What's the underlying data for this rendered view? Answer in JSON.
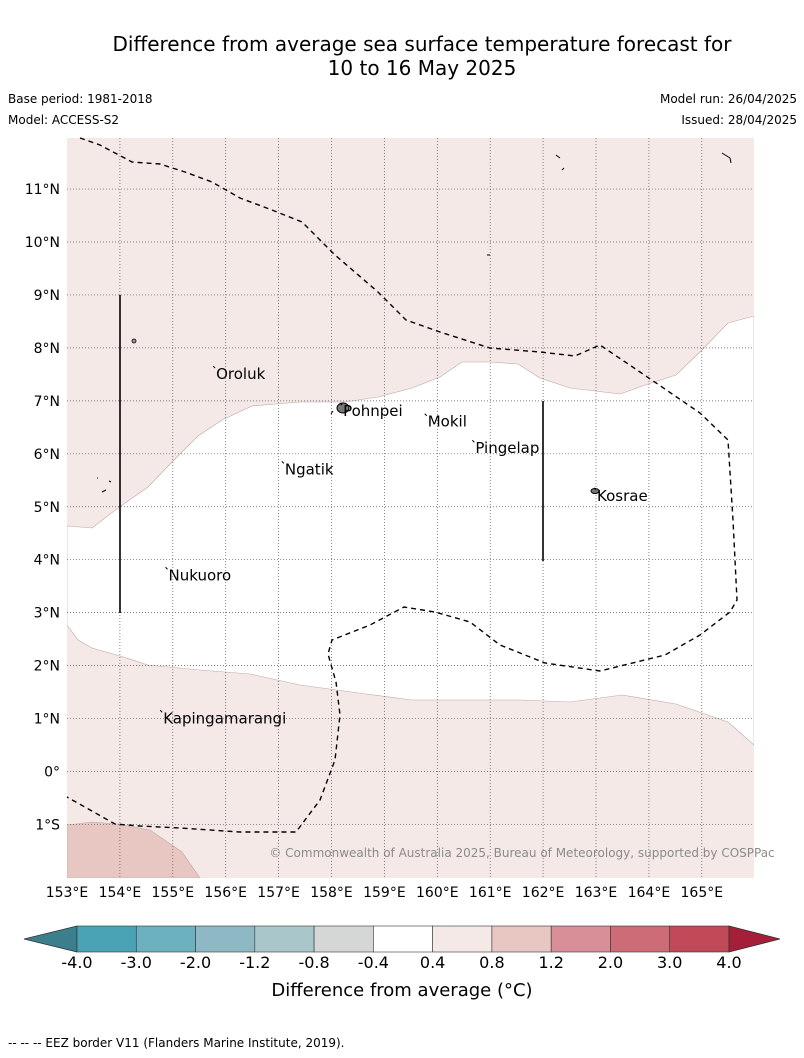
{
  "title": {
    "line1": "Difference from average sea surface temperature forecast for",
    "line2": "10 to 16 May 2025"
  },
  "meta": {
    "base_period": "Base period: 1981-2018",
    "model": "Model: ACCESS-S2",
    "model_run": "Model run: 26/04/2025",
    "issued": "Issued: 28/04/2025"
  },
  "map": {
    "lat_labels": [
      "11°N",
      "10°N",
      "9°N",
      "8°N",
      "7°N",
      "6°N",
      "5°N",
      "4°N",
      "3°N",
      "2°N",
      "1°N",
      "0°",
      "1°S"
    ],
    "lon_labels": [
      "153°E",
      "154°E",
      "155°E",
      "156°E",
      "157°E",
      "158°E",
      "159°E",
      "160°E",
      "161°E",
      "162°E",
      "163°E",
      "164°E",
      "165°E"
    ],
    "places": [
      {
        "name": "Oroluk",
        "lon": 155.8,
        "lat": 7.6
      },
      {
        "name": "Pohnpei",
        "lon": 158.2,
        "lat": 6.9
      },
      {
        "name": "Mokil",
        "lon": 159.8,
        "lat": 6.7
      },
      {
        "name": "Pingelap",
        "lon": 160.7,
        "lat": 6.2
      },
      {
        "name": "Ngatik",
        "lon": 157.1,
        "lat": 5.8
      },
      {
        "name": "Kosrae",
        "lon": 163.0,
        "lat": 5.3
      },
      {
        "name": "Nukuoro",
        "lon": 154.9,
        "lat": 3.8
      },
      {
        "name": "Kapingamarangi",
        "lon": 154.8,
        "lat": 1.1
      }
    ],
    "copyright": "© Commonwealth of Australia 2025, Bureau of Meteorology, supported by COSPPac",
    "fill_colors": {
      "light_warm": "#f5e9e8",
      "warm": "#e8c7c3",
      "neutral": "#ffffff"
    }
  },
  "colorbar": {
    "ticks": [
      "-4.0",
      "-3.0",
      "-2.0",
      "-1.2",
      "-0.8",
      "-0.4",
      "0.4",
      "0.8",
      "1.2",
      "2.0",
      "3.0",
      "4.0"
    ],
    "colors": [
      "#3b7f8c",
      "#4aa3b5",
      "#6bb1c0",
      "#8db8c4",
      "#a9c7ca",
      "#d4d7d6",
      "#ffffff",
      "#f5e9e8",
      "#e8c7c3",
      "#d98f98",
      "#cd6b76",
      "#c04a57",
      "#a61f38"
    ],
    "label": "Difference from average (°C)"
  },
  "footnote": "--  --  -- EEZ border V11 (Flanders Marine Institute, 2019)."
}
